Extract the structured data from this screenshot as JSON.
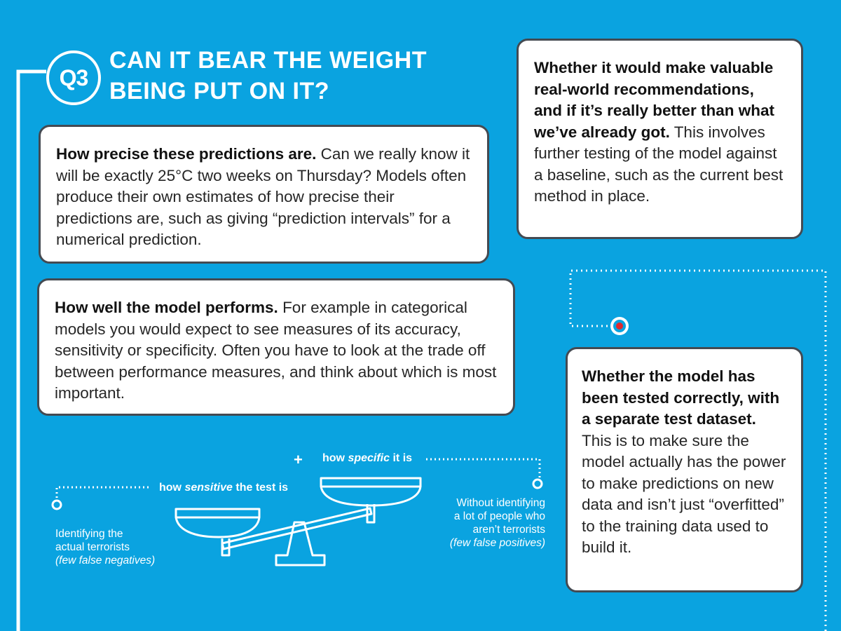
{
  "header": {
    "badge": "Q3",
    "title": "CAN IT BEAR THE WEIGHT BEING PUT ON IT?"
  },
  "cards": {
    "precision": {
      "lead": "How precise these predictions are.",
      "body": " Can we really know it will be exactly 25°C two weeks on Thursday? Models often produce their own estimates of how precise their predictions are, such as giving “prediction intervals” for a numerical prediction."
    },
    "performance": {
      "lead": "How well the model performs.",
      "body": " For example in categorical models you would expect to see measures of its accuracy, sensitivity or specificity. Often you have to look at the trade off between performance measures, and think about which is most important."
    },
    "realworld": {
      "lead": "Whether it would make valuable real-world recommendations, and if it’s really better than what we’ve already got.",
      "body": " This involves further testing of the model against a baseline, such as the current best method in place."
    },
    "tested": {
      "lead": "Whether the model has been tested correctly, with a separate test dataset.",
      "body": " This is to make sure the model actually has the power to make predictions on new data and isn’t just “overfitted” to the training data used to build it."
    }
  },
  "scale_diagram": {
    "plus": "+",
    "sensitive": {
      "pre": "how ",
      "emph": "sensitive",
      "post": " the test is"
    },
    "specific": {
      "pre": "how ",
      "emph": "specific",
      "post": " it is"
    },
    "left_caption": {
      "line1": "Identifying the",
      "line2": "actual terrorists",
      "note": "(few false negatives)"
    },
    "right_caption": {
      "line1": "Without identifying",
      "line2": "a lot of people who",
      "line3": "aren’t terrorists",
      "note": "(few false positives)"
    }
  },
  "colors": {
    "background": "#0aa3e0",
    "card_border": "#444a52",
    "target_red": "#e0282e"
  }
}
